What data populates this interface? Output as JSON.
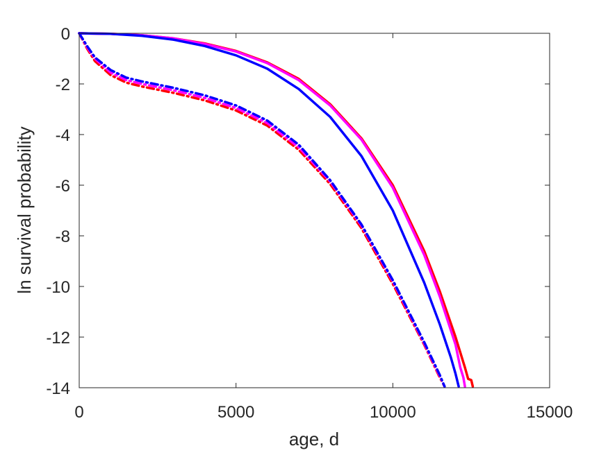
{
  "chart_data": {
    "type": "line",
    "title": "",
    "xlabel": "age, d",
    "ylabel": "ln survival probability",
    "xlim": [
      0,
      15000
    ],
    "ylim": [
      -14,
      0
    ],
    "xticks": [
      0,
      5000,
      10000,
      15000
    ],
    "yticks": [
      0,
      -2,
      -4,
      -6,
      -8,
      -10,
      -12,
      -14
    ],
    "xtick_labels": [
      "0",
      "5000",
      "10000",
      "15000"
    ],
    "ytick_labels": [
      "0",
      "-2",
      "-4",
      "-6",
      "-8",
      "-10",
      "-12",
      "-14"
    ],
    "grid": false,
    "legend": "none",
    "series": [
      {
        "color": "#ff0000",
        "style": "solid",
        "points": [
          [
            0,
            0
          ],
          [
            1000,
            -0.02
          ],
          [
            2000,
            -0.08
          ],
          [
            3000,
            -0.2
          ],
          [
            4000,
            -0.4
          ],
          [
            5000,
            -0.7
          ],
          [
            6000,
            -1.15
          ],
          [
            7000,
            -1.8
          ],
          [
            8000,
            -2.8
          ],
          [
            9000,
            -4.15
          ],
          [
            10000,
            -6.0
          ],
          [
            11000,
            -8.6
          ],
          [
            11500,
            -10.2
          ],
          [
            12000,
            -12.0
          ],
          [
            12300,
            -13.2
          ],
          [
            12400,
            -13.65
          ],
          [
            12500,
            -13.7
          ],
          [
            12550,
            -13.95
          ]
        ]
      },
      {
        "color": "#ff00ff",
        "style": "solid",
        "points": [
          [
            0,
            0
          ],
          [
            1000,
            -0.02
          ],
          [
            2000,
            -0.08
          ],
          [
            3000,
            -0.2
          ],
          [
            4000,
            -0.42
          ],
          [
            5000,
            -0.72
          ],
          [
            6000,
            -1.18
          ],
          [
            7000,
            -1.85
          ],
          [
            8000,
            -2.85
          ],
          [
            9000,
            -4.2
          ],
          [
            10000,
            -6.1
          ],
          [
            11000,
            -8.75
          ],
          [
            11500,
            -10.4
          ],
          [
            12000,
            -12.3
          ],
          [
            12150,
            -13.2
          ],
          [
            12250,
            -13.6
          ],
          [
            12300,
            -13.95
          ]
        ]
      },
      {
        "color": "#0000ff",
        "style": "solid",
        "points": [
          [
            0,
            0
          ],
          [
            1000,
            -0.02
          ],
          [
            2000,
            -0.1
          ],
          [
            3000,
            -0.25
          ],
          [
            4000,
            -0.5
          ],
          [
            5000,
            -0.87
          ],
          [
            6000,
            -1.4
          ],
          [
            7000,
            -2.2
          ],
          [
            8000,
            -3.3
          ],
          [
            9000,
            -4.85
          ],
          [
            10000,
            -7.0
          ],
          [
            11000,
            -9.85
          ],
          [
            11500,
            -11.5
          ],
          [
            11850,
            -12.8
          ],
          [
            12000,
            -13.45
          ],
          [
            12100,
            -13.95
          ]
        ]
      },
      {
        "color": "#ff0000",
        "style": "dashdot",
        "points": [
          [
            0,
            0
          ],
          [
            250,
            -0.6
          ],
          [
            500,
            -1.1
          ],
          [
            1000,
            -1.65
          ],
          [
            1500,
            -1.95
          ],
          [
            2000,
            -2.1
          ],
          [
            3000,
            -2.35
          ],
          [
            4000,
            -2.65
          ],
          [
            5000,
            -3.05
          ],
          [
            6000,
            -3.65
          ],
          [
            7000,
            -4.6
          ],
          [
            8000,
            -5.95
          ],
          [
            9000,
            -7.7
          ],
          [
            10000,
            -9.9
          ],
          [
            11000,
            -12.3
          ],
          [
            11500,
            -13.6
          ],
          [
            11650,
            -13.95
          ]
        ]
      },
      {
        "color": "#ff00ff",
        "style": "dashdot",
        "points": [
          [
            0,
            0
          ],
          [
            250,
            -0.55
          ],
          [
            500,
            -1.0
          ],
          [
            1000,
            -1.55
          ],
          [
            1500,
            -1.85
          ],
          [
            2000,
            -2.0
          ],
          [
            3000,
            -2.25
          ],
          [
            4000,
            -2.55
          ],
          [
            5000,
            -2.95
          ],
          [
            6000,
            -3.55
          ],
          [
            7000,
            -4.5
          ],
          [
            8000,
            -5.85
          ],
          [
            9000,
            -7.6
          ],
          [
            10000,
            -9.8
          ],
          [
            11000,
            -12.25
          ],
          [
            11500,
            -13.55
          ],
          [
            11650,
            -13.95
          ]
        ]
      },
      {
        "color": "#0000ff",
        "style": "dashdot",
        "points": [
          [
            0,
            0
          ],
          [
            250,
            -0.5
          ],
          [
            500,
            -0.95
          ],
          [
            1000,
            -1.45
          ],
          [
            1500,
            -1.75
          ],
          [
            2000,
            -1.9
          ],
          [
            3000,
            -2.15
          ],
          [
            4000,
            -2.45
          ],
          [
            5000,
            -2.85
          ],
          [
            6000,
            -3.45
          ],
          [
            7000,
            -4.4
          ],
          [
            8000,
            -5.8
          ],
          [
            9000,
            -7.55
          ],
          [
            10000,
            -9.75
          ],
          [
            11000,
            -12.2
          ],
          [
            11500,
            -13.5
          ],
          [
            11650,
            -13.95
          ]
        ]
      }
    ]
  }
}
